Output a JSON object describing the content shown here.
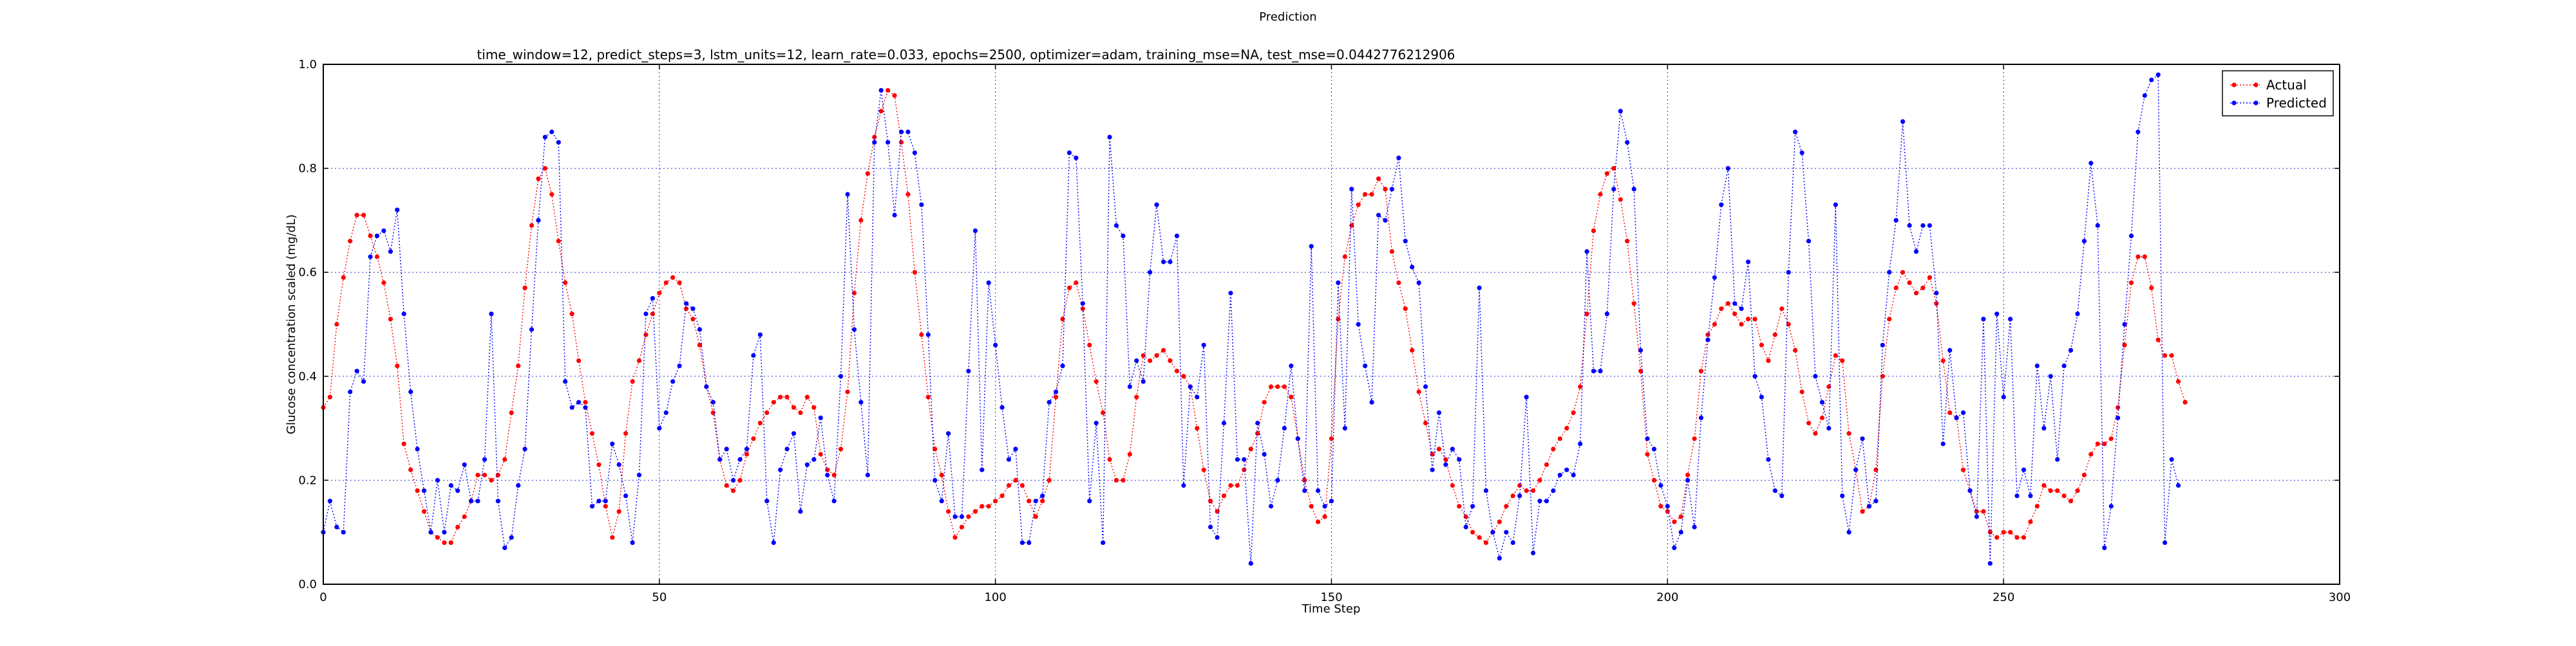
{
  "figure": {
    "suptitle": "Prediction"
  },
  "chart_data": {
    "type": "line",
    "title": "time_window=12, predict_steps=3, lstm_units=12, learn_rate=0.033, epochs=2500, optimizer=adam, training_mse=NA, test_mse=0.0442776212906",
    "xlabel": "Time Step",
    "ylabel": "Glucose concentration scaled (mg/dL)",
    "xlim": [
      0,
      300
    ],
    "ylim": [
      0,
      1.0
    ],
    "xticks": [
      "0",
      "50",
      "100",
      "150",
      "200",
      "250",
      "300"
    ],
    "yticks": [
      "0.0",
      "0.2",
      "0.4",
      "0.6",
      "0.8",
      "1.0"
    ],
    "grid": true,
    "legend_position": "top-right",
    "series": [
      {
        "name": "Actual",
        "color": "#ff0000",
        "values": [
          0.34,
          0.36,
          0.5,
          0.59,
          0.66,
          0.71,
          0.71,
          0.67,
          0.63,
          0.58,
          0.51,
          0.42,
          0.27,
          0.22,
          0.18,
          0.14,
          0.1,
          0.09,
          0.08,
          0.08,
          0.11,
          0.13,
          0.16,
          0.21,
          0.21,
          0.2,
          0.21,
          0.24,
          0.33,
          0.42,
          0.57,
          0.69,
          0.78,
          0.8,
          0.75,
          0.66,
          0.58,
          0.52,
          0.43,
          0.35,
          0.29,
          0.23,
          0.15,
          0.09,
          0.14,
          0.29,
          0.39,
          0.43,
          0.48,
          0.52,
          0.56,
          0.58,
          0.59,
          0.58,
          0.53,
          0.51,
          0.46,
          0.38,
          0.33,
          0.24,
          0.19,
          0.18,
          0.2,
          0.25,
          0.28,
          0.31,
          0.33,
          0.35,
          0.36,
          0.36,
          0.34,
          0.33,
          0.36,
          0.34,
          0.25,
          0.22,
          0.21,
          0.26,
          0.37,
          0.56,
          0.7,
          0.79,
          0.86,
          0.91,
          0.95,
          0.94,
          0.85,
          0.75,
          0.6,
          0.48,
          0.36,
          0.26,
          0.21,
          0.14,
          0.09,
          0.11,
          0.13,
          0.14,
          0.15,
          0.15,
          0.16,
          0.17,
          0.19,
          0.2,
          0.19,
          0.16,
          0.13,
          0.16,
          0.2,
          0.36,
          0.51,
          0.57,
          0.58,
          0.53,
          0.46,
          0.39,
          0.33,
          0.24,
          0.2,
          0.2,
          0.25,
          0.36,
          0.44,
          0.43,
          0.44,
          0.45,
          0.43,
          0.41,
          0.4,
          0.38,
          0.3,
          0.22,
          0.16,
          0.14,
          0.17,
          0.19,
          0.19,
          0.22,
          0.26,
          0.29,
          0.35,
          0.38,
          0.38,
          0.38,
          0.36,
          0.28,
          0.2,
          0.15,
          0.12,
          0.13,
          0.28,
          0.51,
          0.63,
          0.69,
          0.73,
          0.75,
          0.75,
          0.78,
          0.76,
          0.64,
          0.58,
          0.53,
          0.45,
          0.37,
          0.31,
          0.25,
          0.26,
          0.24,
          0.19,
          0.15,
          0.13,
          0.1,
          0.09,
          0.08,
          0.1,
          0.12,
          0.15,
          0.17,
          0.19,
          0.18,
          0.18,
          0.2,
          0.23,
          0.26,
          0.28,
          0.3,
          0.33,
          0.38,
          0.52,
          0.68,
          0.75,
          0.79,
          0.8,
          0.74,
          0.66,
          0.54,
          0.41,
          0.25,
          0.2,
          0.15,
          0.14,
          0.12,
          0.13,
          0.21,
          0.28,
          0.41,
          0.48,
          0.5,
          0.53,
          0.54,
          0.52,
          0.5,
          0.51,
          0.51,
          0.46,
          0.43,
          0.48,
          0.53,
          0.5,
          0.45,
          0.37,
          0.31,
          0.29,
          0.32,
          0.38,
          0.44,
          0.43,
          0.29,
          0.22,
          0.14,
          0.15,
          0.22,
          0.4,
          0.51,
          0.57,
          0.6,
          0.58,
          0.56,
          0.57,
          0.59,
          0.54,
          0.43,
          0.33,
          0.32,
          0.22,
          0.18,
          0.14,
          0.14,
          0.1,
          0.09,
          0.1,
          0.1,
          0.09,
          0.09,
          0.12,
          0.15,
          0.19,
          0.18,
          0.18,
          0.17,
          0.16,
          0.18,
          0.21,
          0.25,
          0.27,
          0.27,
          0.28,
          0.34,
          0.46,
          0.58,
          0.63,
          0.63,
          0.57,
          0.47,
          0.44,
          0.44,
          0.39,
          0.35
        ]
      },
      {
        "name": "Predicted",
        "color": "#0000ff",
        "values": [
          0.1,
          0.16,
          0.11,
          0.1,
          0.37,
          0.41,
          0.39,
          0.63,
          0.67,
          0.68,
          0.64,
          0.72,
          0.52,
          0.37,
          0.26,
          0.18,
          0.1,
          0.2,
          0.1,
          0.19,
          0.18,
          0.23,
          0.16,
          0.16,
          0.24,
          0.52,
          0.16,
          0.07,
          0.09,
          0.19,
          0.26,
          0.49,
          0.7,
          0.86,
          0.87,
          0.85,
          0.39,
          0.34,
          0.35,
          0.34,
          0.15,
          0.16,
          0.16,
          0.27,
          0.23,
          0.17,
          0.08,
          0.21,
          0.52,
          0.55,
          0.3,
          0.33,
          0.39,
          0.42,
          0.54,
          0.53,
          0.49,
          0.38,
          0.35,
          0.24,
          0.26,
          0.2,
          0.24,
          0.26,
          0.44,
          0.48,
          0.16,
          0.08,
          0.22,
          0.26,
          0.29,
          0.14,
          0.23,
          0.24,
          0.32,
          0.21,
          0.16,
          0.4,
          0.75,
          0.49,
          0.35,
          0.21,
          0.85,
          0.95,
          0.85,
          0.71,
          0.87,
          0.87,
          0.83,
          0.73,
          0.48,
          0.2,
          0.16,
          0.29,
          0.13,
          0.13,
          0.41,
          0.68,
          0.22,
          0.58,
          0.46,
          0.34,
          0.24,
          0.26,
          0.08,
          0.08,
          0.16,
          0.17,
          0.35,
          0.37,
          0.42,
          0.83,
          0.82,
          0.54,
          0.16,
          0.31,
          0.08,
          0.86,
          0.69,
          0.67,
          0.38,
          0.43,
          0.39,
          0.6,
          0.73,
          0.62,
          0.62,
          0.67,
          0.19,
          0.38,
          0.36,
          0.46,
          0.11,
          0.09,
          0.31,
          0.56,
          0.24,
          0.24,
          0.04,
          0.31,
          0.25,
          0.15,
          0.2,
          0.3,
          0.42,
          0.28,
          0.18,
          0.65,
          0.18,
          0.15,
          0.16,
          0.58,
          0.3,
          0.76,
          0.5,
          0.42,
          0.35,
          0.71,
          0.7,
          0.76,
          0.82,
          0.66,
          0.61,
          0.58,
          0.38,
          0.22,
          0.33,
          0.23,
          0.26,
          0.24,
          0.11,
          0.15,
          0.57,
          0.18,
          0.1,
          0.05,
          0.1,
          0.08,
          0.17,
          0.36,
          0.06,
          0.16,
          0.16,
          0.18,
          0.21,
          0.22,
          0.21,
          0.27,
          0.64,
          0.41,
          0.41,
          0.52,
          0.76,
          0.91,
          0.85,
          0.76,
          0.45,
          0.28,
          0.26,
          0.19,
          0.15,
          0.07,
          0.1,
          0.2,
          0.11,
          0.32,
          0.47,
          0.59,
          0.73,
          0.8,
          0.54,
          0.53,
          0.62,
          0.4,
          0.36,
          0.24,
          0.18,
          0.17,
          0.6,
          0.87,
          0.83,
          0.66,
          0.4,
          0.35,
          0.3,
          0.73,
          0.17,
          0.1,
          0.22,
          0.28,
          0.15,
          0.16,
          0.46,
          0.6,
          0.7,
          0.89,
          0.69,
          0.64,
          0.69,
          0.69,
          0.56,
          0.27,
          0.45,
          0.32,
          0.33,
          0.18,
          0.13,
          0.51,
          0.04,
          0.52,
          0.36,
          0.51,
          0.17,
          0.22,
          0.17,
          0.42,
          0.3,
          0.4,
          0.24,
          0.42,
          0.45,
          0.52,
          0.66,
          0.81,
          0.69,
          0.07,
          0.15,
          0.32,
          0.5,
          0.67,
          0.87,
          0.94,
          0.97,
          0.98,
          0.08,
          0.24,
          0.19
        ]
      }
    ]
  }
}
